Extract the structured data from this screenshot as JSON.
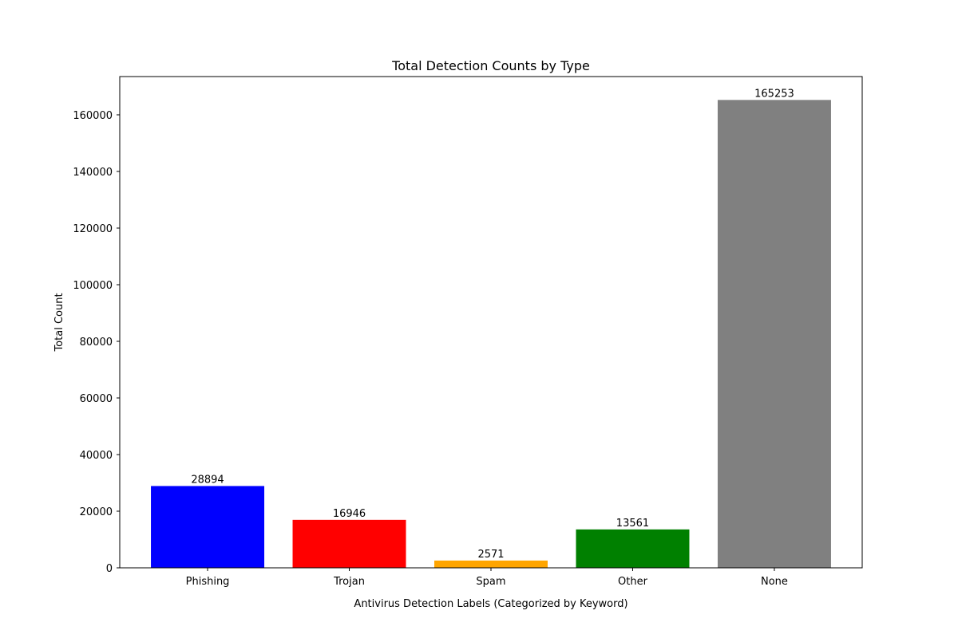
{
  "chart_data": {
    "type": "bar",
    "title": "Total Detection Counts by Type",
    "xlabel": "Antivirus Detection Labels (Categorized by Keyword)",
    "ylabel": "Total Count",
    "categories": [
      "Phishing",
      "Trojan",
      "Spam",
      "Other",
      "None"
    ],
    "values": [
      28894,
      16946,
      2571,
      13561,
      165253
    ],
    "colors": [
      "#0000ff",
      "#ff0000",
      "#ffa500",
      "#008000",
      "#808080"
    ],
    "ylim": [
      0,
      173515
    ],
    "yticks": [
      0,
      20000,
      40000,
      60000,
      80000,
      100000,
      120000,
      140000,
      160000
    ],
    "grid": false,
    "data_labels": true
  }
}
